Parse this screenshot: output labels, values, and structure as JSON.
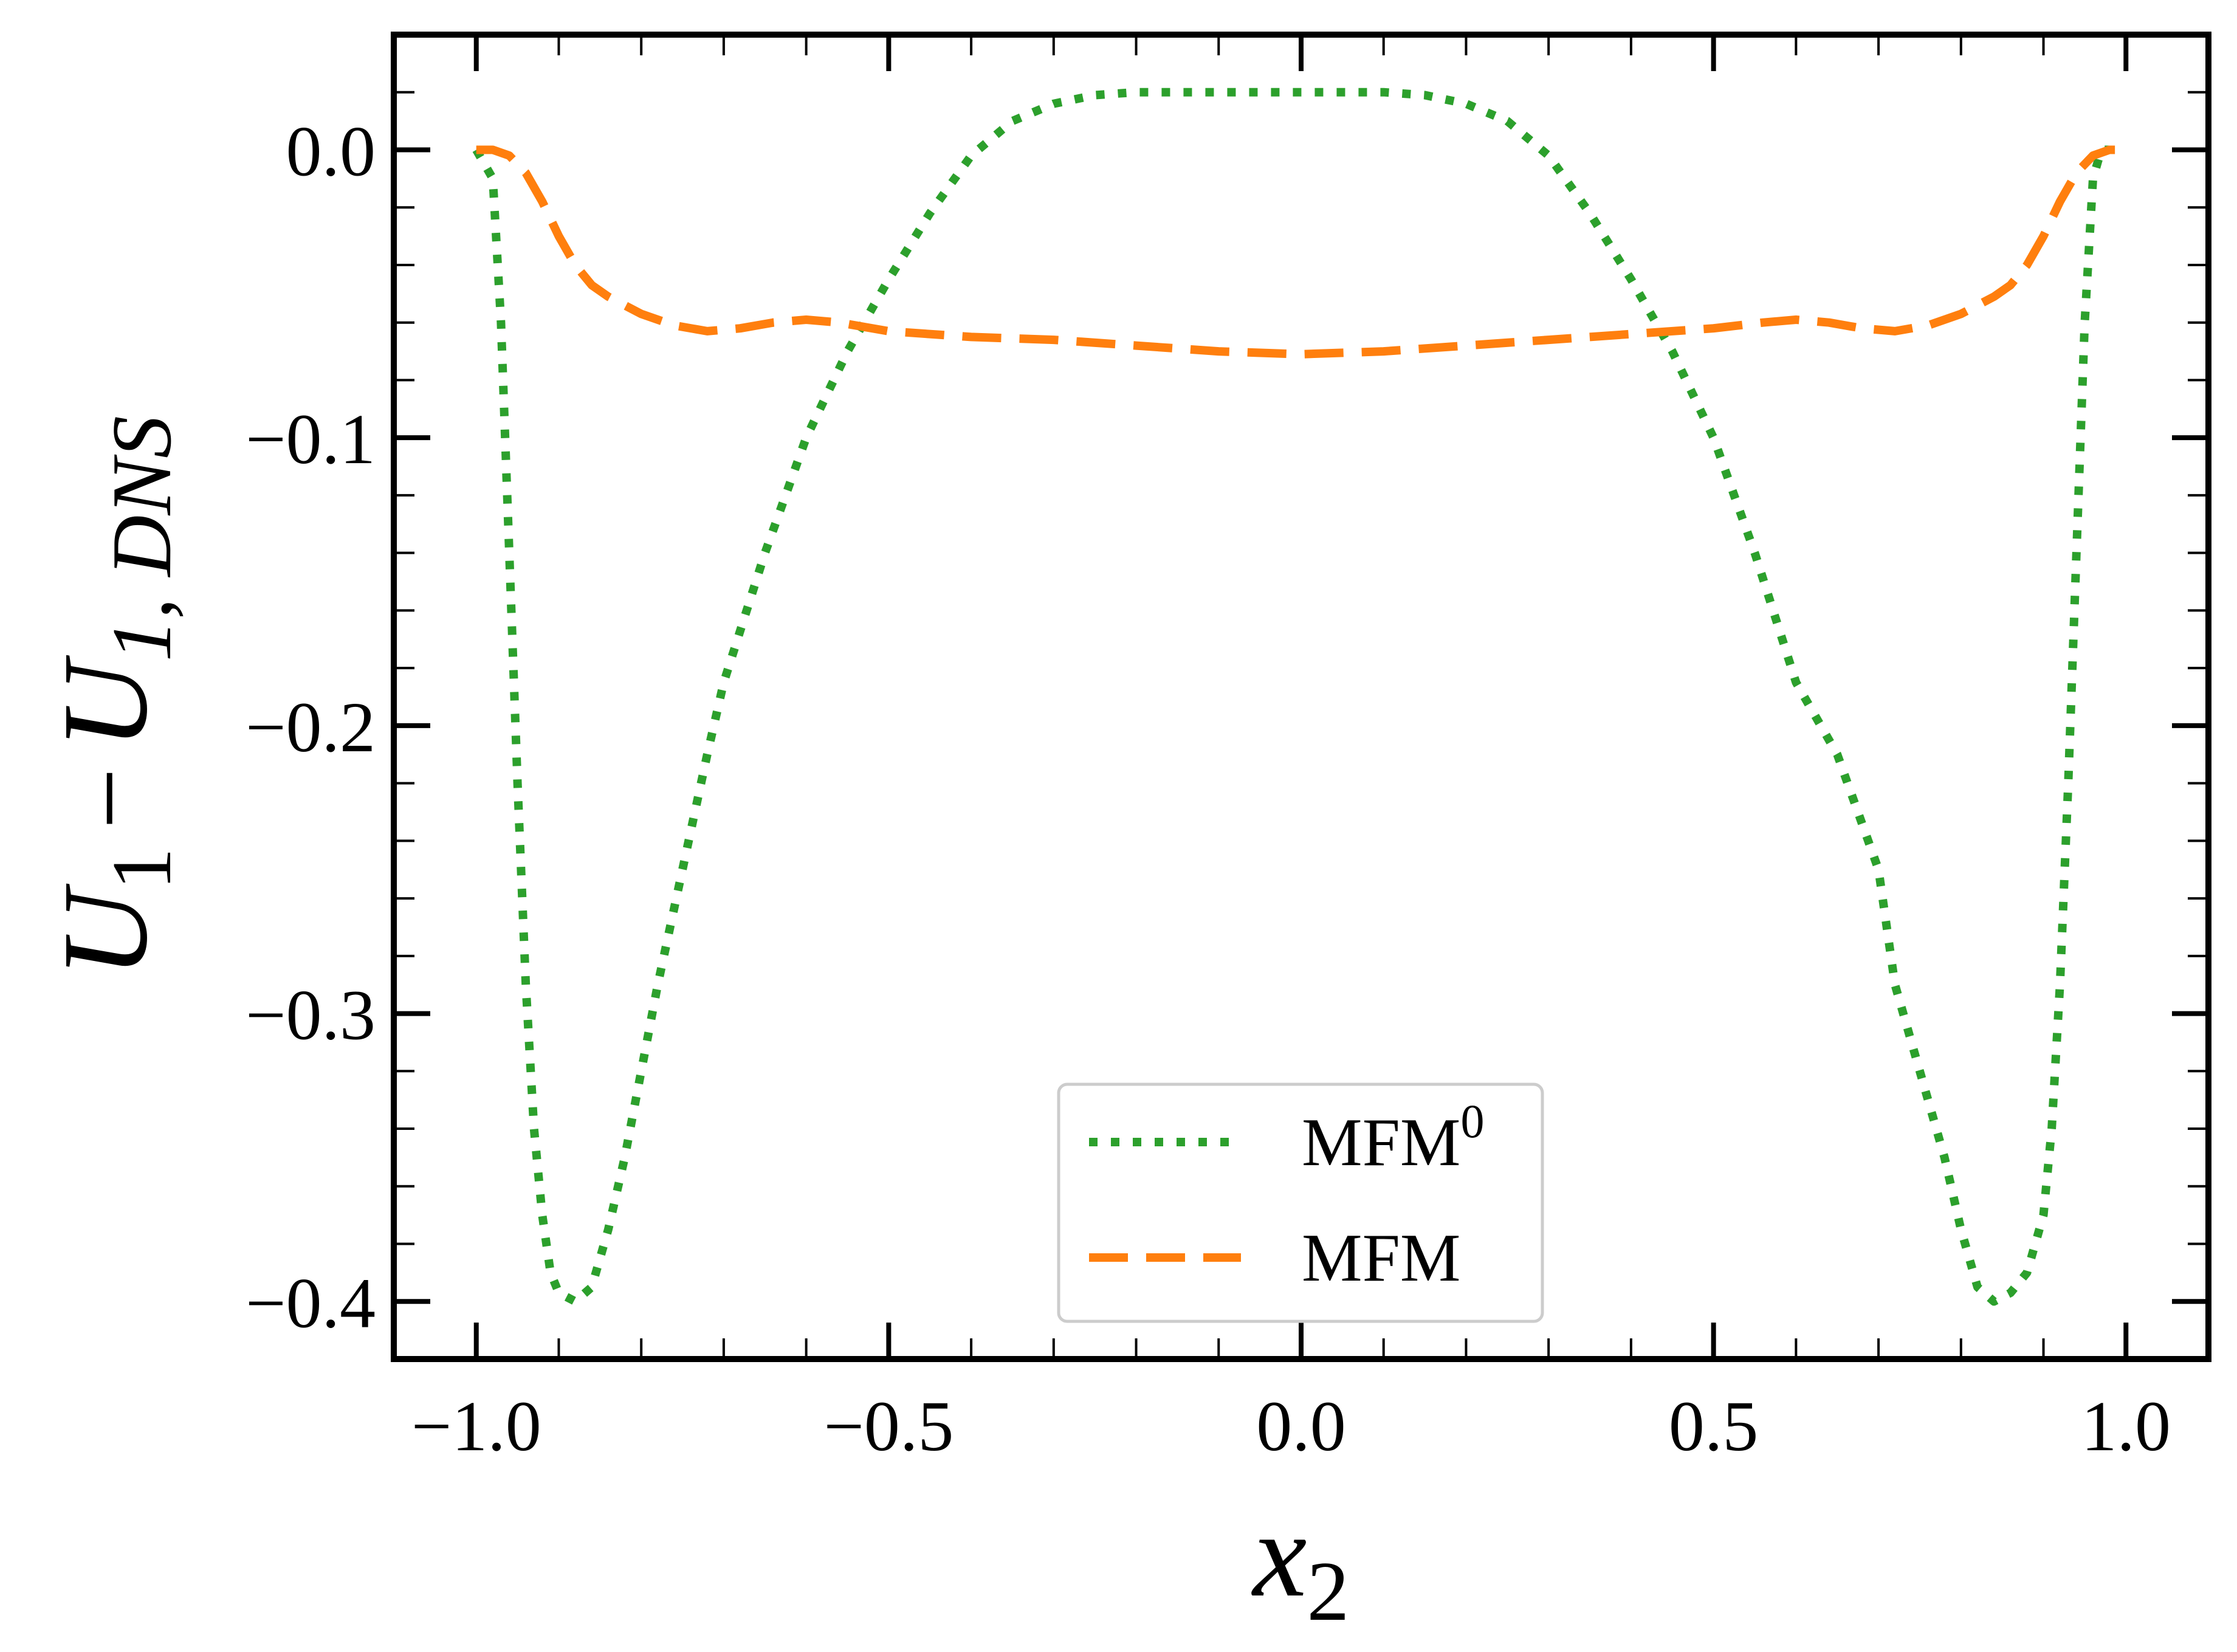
{
  "chart_data": {
    "type": "line",
    "xlabel": {
      "base": "x",
      "sub": "2"
    },
    "ylabel": {
      "base": "U",
      "sub1": "1",
      "minus": "−",
      "base2": "U",
      "sub2": "1, DNS"
    },
    "xlim": [
      -1.1,
      1.1
    ],
    "ylim": [
      -0.42,
      0.04
    ],
    "xticks": [
      -1.0,
      -0.5,
      0.0,
      0.5,
      1.0
    ],
    "xtick_labels": [
      "−1.0",
      "−0.5",
      "0.0",
      "0.5",
      "1.0"
    ],
    "yticks": [
      0.0,
      -0.1,
      -0.2,
      -0.3,
      -0.4
    ],
    "ytick_labels": [
      "0.0",
      "−0.1",
      "−0.2",
      "−0.3",
      "−0.4"
    ],
    "x_minor_step": 0.1,
    "y_minor_step": 0.02,
    "legend": {
      "position": "lower center"
    },
    "series": [
      {
        "name": "MFM",
        "name_sup": "0",
        "color": "#2ca02c",
        "style": "dotted",
        "x": [
          -1.0,
          -0.98,
          -0.97,
          -0.96,
          -0.95,
          -0.94,
          -0.93,
          -0.92,
          -0.91,
          -0.9,
          -0.88,
          -0.86,
          -0.84,
          -0.82,
          -0.8,
          -0.78,
          -0.75,
          -0.72,
          -0.7,
          -0.65,
          -0.6,
          -0.55,
          -0.5,
          -0.45,
          -0.4,
          -0.35,
          -0.3,
          -0.25,
          -0.2,
          -0.15,
          -0.1,
          -0.05,
          0.0,
          0.05,
          0.1,
          0.15,
          0.2,
          0.25,
          0.3,
          0.35,
          0.4,
          0.45,
          0.5,
          0.55,
          0.6,
          0.65,
          0.7,
          0.72,
          0.75,
          0.78,
          0.8,
          0.82,
          0.84,
          0.86,
          0.88,
          0.9,
          0.91,
          0.92,
          0.93,
          0.94,
          0.95,
          0.96,
          0.97,
          0.98,
          1.0
        ],
        "y": [
          0.0,
          -0.01,
          -0.06,
          -0.14,
          -0.22,
          -0.29,
          -0.34,
          -0.37,
          -0.39,
          -0.397,
          -0.4,
          -0.395,
          -0.375,
          -0.35,
          -0.32,
          -0.29,
          -0.25,
          -0.21,
          -0.185,
          -0.14,
          -0.1,
          -0.07,
          -0.045,
          -0.022,
          -0.002,
          0.01,
          0.016,
          0.019,
          0.02,
          0.02,
          0.02,
          0.02,
          0.02,
          0.02,
          0.02,
          0.019,
          0.016,
          0.01,
          -0.002,
          -0.022,
          -0.045,
          -0.07,
          -0.1,
          -0.14,
          -0.185,
          -0.21,
          -0.25,
          -0.29,
          -0.32,
          -0.35,
          -0.375,
          -0.395,
          -0.4,
          -0.397,
          -0.39,
          -0.37,
          -0.34,
          -0.29,
          -0.22,
          -0.14,
          -0.06,
          -0.01,
          0.0,
          0.0,
          0.0
        ]
      },
      {
        "name": "MFM",
        "name_sup": "",
        "color": "#ff7f0e",
        "style": "dashed",
        "x": [
          -1.0,
          -0.98,
          -0.96,
          -0.94,
          -0.92,
          -0.9,
          -0.88,
          -0.86,
          -0.84,
          -0.82,
          -0.8,
          -0.76,
          -0.72,
          -0.68,
          -0.64,
          -0.6,
          -0.56,
          -0.5,
          -0.4,
          -0.3,
          -0.2,
          -0.1,
          0.0,
          0.1,
          0.2,
          0.3,
          0.4,
          0.5,
          0.56,
          0.6,
          0.64,
          0.68,
          0.72,
          0.76,
          0.8,
          0.82,
          0.84,
          0.86,
          0.88,
          0.9,
          0.92,
          0.94,
          0.96,
          0.98,
          1.0
        ],
        "y": [
          0.0,
          0.0,
          -0.002,
          -0.008,
          -0.018,
          -0.03,
          -0.04,
          -0.047,
          -0.051,
          -0.054,
          -0.057,
          -0.061,
          -0.063,
          -0.062,
          -0.06,
          -0.059,
          -0.06,
          -0.063,
          -0.065,
          -0.066,
          -0.068,
          -0.07,
          -0.071,
          -0.07,
          -0.068,
          -0.066,
          -0.064,
          -0.062,
          -0.06,
          -0.059,
          -0.06,
          -0.062,
          -0.063,
          -0.061,
          -0.057,
          -0.054,
          -0.051,
          -0.047,
          -0.04,
          -0.03,
          -0.018,
          -0.008,
          -0.002,
          0.0,
          0.0
        ]
      }
    ]
  }
}
